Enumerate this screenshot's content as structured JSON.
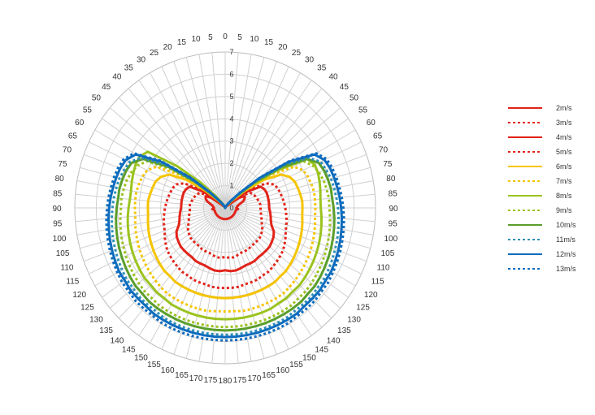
{
  "chart_data": {
    "type": "radar",
    "theta_labels_note_free": true,
    "theta_labels": [
      "0",
      "5",
      "10",
      "15",
      "20",
      "25",
      "30",
      "35",
      "40",
      "45",
      "50",
      "55",
      "60",
      "65",
      "70",
      "75",
      "80",
      "85",
      "90",
      "95",
      "100",
      "105",
      "110",
      "115",
      "120",
      "125",
      "130",
      "135",
      "140",
      "145",
      "150",
      "155",
      "160",
      "165",
      "170",
      "175",
      "180",
      "175",
      "170",
      "165",
      "160",
      "155",
      "150",
      "145",
      "140",
      "135",
      "130",
      "125",
      "120",
      "115",
      "110",
      "105",
      "100",
      "95",
      "90",
      "85",
      "80",
      "75",
      "70",
      "65",
      "60",
      "55",
      "50",
      "45",
      "40",
      "35",
      "30",
      "25",
      "20",
      "15",
      "10",
      "5"
    ],
    "radial_ticks": [
      0,
      1,
      2,
      3,
      4,
      5,
      6,
      7
    ],
    "rlim": [
      0,
      7
    ],
    "grid": true,
    "legend_position": "right",
    "series": [
      {
        "name": "2m/s",
        "color": "#e2231a",
        "dash": "solid",
        "values": [
          0,
          0,
          0,
          0,
          0,
          0.02,
          0.06,
          0.08,
          0.1,
          0.12,
          0.26,
          0.8,
          1.05,
          1.0,
          0.9,
          0.72,
          0.6,
          0.56,
          0.52,
          0.6,
          0.52,
          0.5,
          0.5,
          0.5,
          0.5,
          0.5,
          0.5,
          0.5,
          0.5,
          0.5,
          0.5,
          0.5,
          0.5,
          0.5,
          0.5,
          0.5,
          0.5,
          0.5,
          0.5,
          0.5,
          0.5,
          0.5,
          0.5,
          0.5,
          0.5,
          0.5,
          0.5,
          0.5,
          0.5,
          0.5,
          0.5,
          0.5,
          0.52,
          0.6,
          0.52,
          0.56,
          0.6,
          0.72,
          0.9,
          1.0,
          1.05,
          0.8,
          0.26,
          0.12,
          0.1,
          0.08,
          0.06,
          0.02,
          0,
          0,
          0,
          0
        ]
      },
      {
        "name": "3m/s",
        "color": "#e2231a",
        "dash": "dash",
        "values": [
          0,
          0,
          0,
          0,
          0,
          0.03,
          0.07,
          0.1,
          0.14,
          0.2,
          0.5,
          1.0,
          1.35,
          1.45,
          1.5,
          1.55,
          1.6,
          1.65,
          1.65,
          1.65,
          1.7,
          1.75,
          1.8,
          1.9,
          2.0,
          2.05,
          2.1,
          2.1,
          2.1,
          2.1,
          2.15,
          2.15,
          2.15,
          2.2,
          2.25,
          2.25,
          2.2,
          2.25,
          2.25,
          2.2,
          2.15,
          2.15,
          2.15,
          2.1,
          2.1,
          2.1,
          2.1,
          2.05,
          2.0,
          1.9,
          1.8,
          1.75,
          1.7,
          1.65,
          1.65,
          1.65,
          1.6,
          1.55,
          1.5,
          1.45,
          1.35,
          1.0,
          0.5,
          0.2,
          0.14,
          0.1,
          0.07,
          0.03,
          0,
          0,
          0,
          0
        ]
      },
      {
        "name": "4m/s",
        "color": "#e2231a",
        "dash": "solid",
        "values": [
          0,
          0,
          0,
          0,
          0,
          0.03,
          0.08,
          0.12,
          0.18,
          0.3,
          0.7,
          1.3,
          1.9,
          2.0,
          2.05,
          2.05,
          2.05,
          2.05,
          2.05,
          2.1,
          2.15,
          2.2,
          2.3,
          2.5,
          2.6,
          2.65,
          2.7,
          2.7,
          2.7,
          2.7,
          2.75,
          2.75,
          2.75,
          2.8,
          2.85,
          2.85,
          2.8,
          2.85,
          2.85,
          2.8,
          2.75,
          2.75,
          2.75,
          2.7,
          2.7,
          2.7,
          2.7,
          2.65,
          2.6,
          2.5,
          2.3,
          2.2,
          2.15,
          2.1,
          2.05,
          2.05,
          2.05,
          2.05,
          2.05,
          2.0,
          1.9,
          1.3,
          0.7,
          0.3,
          0.18,
          0.12,
          0.08,
          0.03,
          0,
          0,
          0,
          0
        ]
      },
      {
        "name": "5m/s",
        "color": "#e2231a",
        "dash": "dash",
        "values": [
          0,
          0,
          0,
          0,
          0,
          0.03,
          0.09,
          0.13,
          0.2,
          0.35,
          0.8,
          1.5,
          2.2,
          2.5,
          2.6,
          2.65,
          2.7,
          2.75,
          2.8,
          2.85,
          2.9,
          2.95,
          3.0,
          3.1,
          3.2,
          3.3,
          3.35,
          3.4,
          3.45,
          3.5,
          3.5,
          3.55,
          3.55,
          3.55,
          3.6,
          3.6,
          3.6,
          3.6,
          3.6,
          3.55,
          3.55,
          3.55,
          3.5,
          3.5,
          3.45,
          3.4,
          3.35,
          3.3,
          3.2,
          3.1,
          3.0,
          2.95,
          2.9,
          2.85,
          2.8,
          2.75,
          2.7,
          2.65,
          2.6,
          2.5,
          2.2,
          1.5,
          0.8,
          0.35,
          0.2,
          0.13,
          0.09,
          0.03,
          0,
          0,
          0,
          0
        ]
      },
      {
        "name": "6m/s",
        "color": "#f5c400",
        "dash": "solid",
        "values": [
          0,
          0,
          0,
          0,
          0,
          0.04,
          0.1,
          0.15,
          0.25,
          0.5,
          1.2,
          2.2,
          3.0,
          3.3,
          3.45,
          3.5,
          3.55,
          3.6,
          3.6,
          3.6,
          3.65,
          3.7,
          3.75,
          3.8,
          3.85,
          3.9,
          3.95,
          4.0,
          4.0,
          4.05,
          4.05,
          4.05,
          4.05,
          4.05,
          4.05,
          4.05,
          4.05,
          4.05,
          4.05,
          4.05,
          4.05,
          4.05,
          4.05,
          4.05,
          4.0,
          4.0,
          3.95,
          3.9,
          3.85,
          3.8,
          3.75,
          3.7,
          3.65,
          3.6,
          3.6,
          3.6,
          3.55,
          3.5,
          3.45,
          3.3,
          3.0,
          2.2,
          1.2,
          0.5,
          0.25,
          0.15,
          0.1,
          0.04,
          0,
          0,
          0,
          0
        ]
      },
      {
        "name": "7m/s",
        "color": "#f5c400",
        "dash": "dash",
        "values": [
          0,
          0,
          0,
          0,
          0,
          0.04,
          0.1,
          0.16,
          0.3,
          0.6,
          1.4,
          2.6,
          3.7,
          4.0,
          4.1,
          4.15,
          4.2,
          4.2,
          4.2,
          4.2,
          4.25,
          4.3,
          4.35,
          4.4,
          4.45,
          4.5,
          4.55,
          4.6,
          4.65,
          4.7,
          4.7,
          4.7,
          4.7,
          4.7,
          4.7,
          4.65,
          4.65,
          4.65,
          4.7,
          4.7,
          4.7,
          4.7,
          4.7,
          4.7,
          4.65,
          4.6,
          4.55,
          4.5,
          4.45,
          4.4,
          4.35,
          4.3,
          4.25,
          4.2,
          4.2,
          4.2,
          4.2,
          4.15,
          4.1,
          4.0,
          3.7,
          2.6,
          1.4,
          0.6,
          0.3,
          0.16,
          0.1,
          0.04,
          0,
          0,
          0,
          0
        ]
      },
      {
        "name": "8m/s",
        "color": "#9bc31f",
        "dash": "solid",
        "values": [
          0,
          0,
          0,
          0,
          0,
          0.04,
          0.11,
          0.17,
          0.32,
          0.7,
          1.6,
          2.9,
          4.4,
          4.6,
          4.6,
          4.55,
          4.5,
          4.45,
          4.45,
          4.5,
          4.55,
          4.6,
          4.65,
          4.7,
          4.75,
          4.8,
          4.85,
          4.9,
          4.9,
          4.95,
          4.95,
          5.0,
          5.0,
          5.0,
          5.0,
          5.0,
          5.0,
          5.0,
          5.0,
          5.0,
          5.0,
          5.0,
          5.0,
          4.95,
          4.95,
          4.9,
          4.9,
          4.85,
          4.8,
          4.75,
          4.7,
          4.65,
          4.6,
          4.55,
          4.5,
          4.45,
          4.45,
          4.5,
          4.55,
          4.6,
          4.6,
          4.4,
          2.9,
          1.6,
          0.7,
          0.32,
          0.17,
          0.11,
          0.04,
          0,
          0,
          0,
          0
        ]
      },
      {
        "name": "9m/s",
        "color": "#9bc31f",
        "dash": "dash",
        "values": [
          0,
          0,
          0,
          0,
          0,
          0.04,
          0.11,
          0.18,
          0.34,
          0.75,
          1.7,
          3.0,
          4.2,
          4.5,
          4.65,
          4.75,
          4.8,
          4.85,
          4.85,
          4.9,
          4.95,
          5.0,
          5.05,
          5.1,
          5.15,
          5.2,
          5.25,
          5.3,
          5.3,
          5.35,
          5.35,
          5.35,
          5.35,
          5.35,
          5.35,
          5.35,
          5.35,
          5.35,
          5.35,
          5.35,
          5.35,
          5.35,
          5.35,
          5.35,
          5.3,
          5.3,
          5.25,
          5.2,
          5.15,
          5.1,
          5.05,
          5.0,
          4.95,
          4.9,
          4.85,
          4.85,
          4.8,
          4.75,
          4.65,
          4.5,
          4.2,
          3.0,
          1.7,
          0.75,
          0.34,
          0.18,
          0.11,
          0.04,
          0,
          0,
          0,
          0
        ]
      },
      {
        "name": "10m/s",
        "color": "#5a9e2b",
        "dash": "solid",
        "values": [
          0,
          0,
          0,
          0,
          0,
          0.05,
          0.12,
          0.19,
          0.36,
          0.8,
          1.8,
          3.2,
          4.4,
          4.8,
          4.9,
          4.95,
          5.0,
          5.0,
          5.05,
          5.1,
          5.15,
          5.2,
          5.25,
          5.3,
          5.35,
          5.4,
          5.45,
          5.45,
          5.5,
          5.5,
          5.5,
          5.5,
          5.5,
          5.5,
          5.5,
          5.5,
          5.5,
          5.5,
          5.5,
          5.5,
          5.5,
          5.5,
          5.5,
          5.5,
          5.5,
          5.45,
          5.45,
          5.4,
          5.35,
          5.3,
          5.25,
          5.2,
          5.15,
          5.1,
          5.05,
          5.0,
          5.0,
          4.95,
          4.9,
          4.8,
          4.4,
          3.2,
          1.8,
          0.8,
          0.36,
          0.19,
          0.12,
          0.05,
          0,
          0,
          0,
          0
        ]
      },
      {
        "name": "11m/s",
        "color": "#2e8fb5",
        "dash": "dash",
        "values": [
          0,
          0,
          0,
          0,
          0,
          0.05,
          0.12,
          0.2,
          0.38,
          0.85,
          1.9,
          3.4,
          4.5,
          4.9,
          5.0,
          5.1,
          5.15,
          5.2,
          5.25,
          5.3,
          5.35,
          5.4,
          5.45,
          5.5,
          5.55,
          5.6,
          5.6,
          5.65,
          5.65,
          5.65,
          5.7,
          5.7,
          5.7,
          5.7,
          5.7,
          5.7,
          5.7,
          5.7,
          5.7,
          5.7,
          5.7,
          5.7,
          5.7,
          5.65,
          5.65,
          5.65,
          5.6,
          5.6,
          5.55,
          5.5,
          5.45,
          5.4,
          5.35,
          5.3,
          5.25,
          5.2,
          5.15,
          5.1,
          5.0,
          4.9,
          4.5,
          3.4,
          1.9,
          0.85,
          0.38,
          0.2,
          0.12,
          0.05,
          0,
          0,
          0,
          0
        ]
      },
      {
        "name": "12m/s",
        "color": "#0f6cbd",
        "dash": "solid",
        "values": [
          0,
          0,
          0,
          0,
          0,
          0.05,
          0.13,
          0.22,
          0.42,
          0.95,
          2.1,
          3.6,
          4.8,
          5.1,
          5.2,
          5.25,
          5.3,
          5.35,
          5.4,
          5.45,
          5.5,
          5.55,
          5.6,
          5.65,
          5.7,
          5.7,
          5.75,
          5.75,
          5.75,
          5.8,
          5.8,
          5.8,
          5.8,
          5.8,
          5.8,
          5.8,
          5.8,
          5.8,
          5.8,
          5.8,
          5.8,
          5.8,
          5.8,
          5.8,
          5.75,
          5.75,
          5.75,
          5.7,
          5.7,
          5.65,
          5.6,
          5.55,
          5.5,
          5.45,
          5.4,
          5.35,
          5.3,
          5.25,
          5.2,
          5.1,
          4.8,
          3.6,
          2.1,
          0.95,
          0.42,
          0.22,
          0.13,
          0.05,
          0,
          0,
          0,
          0
        ]
      },
      {
        "name": "13m/s",
        "color": "#0f6cbd",
        "dash": "dash",
        "values": [
          0,
          0,
          0,
          0,
          0,
          0.05,
          0.13,
          0.22,
          0.43,
          0.97,
          2.15,
          3.7,
          4.9,
          5.2,
          5.3,
          5.35,
          5.4,
          5.45,
          5.5,
          5.55,
          5.6,
          5.65,
          5.7,
          5.75,
          5.8,
          5.85,
          5.85,
          5.9,
          5.9,
          5.9,
          5.95,
          5.95,
          5.95,
          5.95,
          5.95,
          5.95,
          5.95,
          5.95,
          5.95,
          5.95,
          5.95,
          5.95,
          5.95,
          5.9,
          5.9,
          5.9,
          5.85,
          5.85,
          5.8,
          5.75,
          5.7,
          5.65,
          5.6,
          5.55,
          5.5,
          5.45,
          5.4,
          5.35,
          5.3,
          5.2,
          4.9,
          3.7,
          2.15,
          0.97,
          0.43,
          0.22,
          0.13,
          0.05,
          0,
          0,
          0,
          0
        ]
      }
    ]
  }
}
